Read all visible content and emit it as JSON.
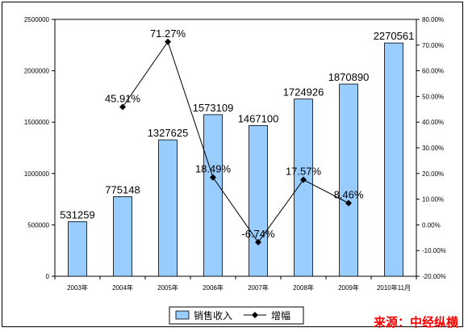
{
  "chart_data": {
    "type": "bar",
    "categories": [
      "2003年",
      "2004年",
      "2005年",
      "2006年",
      "2007年",
      "2008年",
      "2009年",
      "2010年11月"
    ],
    "series": [
      {
        "name": "销售收入",
        "type": "bar",
        "axis": "left",
        "values": [
          531259,
          775148,
          1327625,
          1573109,
          1467100,
          1724926,
          1870890,
          2270561
        ],
        "labels": [
          "531259",
          "775148",
          "1327625",
          "1573109",
          "1467100",
          "1724926",
          "1870890",
          "2270561"
        ],
        "color": "#99ccff"
      },
      {
        "name": "增幅",
        "type": "line",
        "axis": "right",
        "values": [
          null,
          45.91,
          71.27,
          18.49,
          -6.74,
          17.57,
          8.46,
          null
        ],
        "labels": [
          "",
          "45.91%",
          "71.27%",
          "18.49%",
          "-6.74%",
          "17.57%",
          "8.46%",
          ""
        ],
        "color": "#000000"
      }
    ],
    "left_axis": {
      "ylim": [
        0,
        2500000
      ],
      "ticks": [
        0,
        500000,
        1000000,
        1500000,
        2000000,
        2500000
      ],
      "tick_labels": [
        "0",
        "500000",
        "1000000",
        "1500000",
        "2000000",
        "2500000"
      ]
    },
    "right_axis": {
      "ylim": [
        -20,
        80
      ],
      "ticks": [
        -20,
        -10,
        0,
        10,
        20,
        30,
        40,
        50,
        60,
        70,
        80
      ],
      "tick_labels": [
        "-20.00%",
        "-10.00%",
        "0.00%",
        "10.00%",
        "20.00%",
        "30.00%",
        "40.00%",
        "50.00%",
        "60.00%",
        "70.00%",
        "80.00%"
      ]
    },
    "grid": false,
    "legend": {
      "position": "bottom",
      "entries": [
        "销售收入",
        "增幅"
      ]
    }
  },
  "source_text": "来源：中经纵横"
}
